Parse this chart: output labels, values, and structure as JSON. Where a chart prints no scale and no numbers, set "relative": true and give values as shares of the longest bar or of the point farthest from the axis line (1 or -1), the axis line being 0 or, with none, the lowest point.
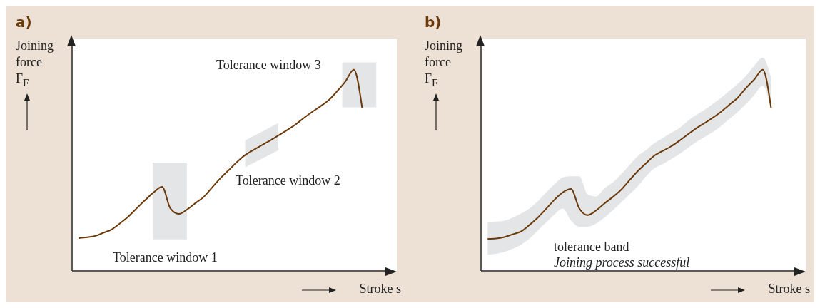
{
  "chart_data": [
    {
      "type": "line",
      "title": "a)",
      "xlabel": "Stroke s",
      "ylabel": "Joining force F$_{F}$",
      "relative": true,
      "categories": [
        null,
        null,
        null,
        null,
        null,
        null,
        null,
        null,
        null,
        null,
        null,
        null,
        null,
        null,
        null,
        null,
        null,
        null,
        null,
        null,
        null,
        null,
        null,
        null,
        null,
        null,
        null,
        null,
        null,
        null,
        null,
        null,
        null,
        null,
        null
      ],
      "series": [
        {
          "color": "#6b3a0a",
          "values": [
            0.163,
            0.167,
            0.174,
            0.19,
            0.207,
            0.238,
            0.272,
            0.313,
            0.353,
            0.391,
            0.418,
            0.31,
            0.283,
            0.305,
            0.337,
            0.368,
            0.415,
            0.461,
            0.501,
            0.542,
            0.577,
            0.602,
            0.626,
            0.649,
            0.674,
            0.7,
            0.727,
            0.76,
            0.79,
            0.818,
            0.849,
            0.893,
            0.942,
            1.0,
            0.81
          ]
        }
      ],
      "annotations": [
        "Tolerance window 1",
        "Tolerance window 2",
        "Tolerance window 3"
      ]
    },
    {
      "type": "line",
      "title": "b)",
      "xlabel": "Stroke s",
      "ylabel": "Joining force F$_{F}$",
      "relative": true,
      "categories": [
        null,
        null,
        null,
        null,
        null,
        null,
        null,
        null,
        null,
        null,
        null,
        null,
        null,
        null,
        null,
        null,
        null,
        null,
        null,
        null,
        null,
        null,
        null,
        null,
        null,
        null,
        null,
        null,
        null,
        null,
        null,
        null,
        null,
        null,
        null
      ],
      "series": [
        {
          "color": "#6b3a0a",
          "values": [
            0.159,
            0.161,
            0.168,
            0.182,
            0.196,
            0.228,
            0.265,
            0.308,
            0.353,
            0.39,
            0.407,
            0.31,
            0.277,
            0.3,
            0.335,
            0.367,
            0.403,
            0.45,
            0.496,
            0.535,
            0.573,
            0.596,
            0.619,
            0.647,
            0.678,
            0.708,
            0.734,
            0.761,
            0.791,
            0.826,
            0.861,
            0.909,
            0.952,
            1.0,
            0.81
          ],
          "lower": [
            0.08,
            0.085,
            0.095,
            0.11,
            0.13,
            0.16,
            0.2,
            0.24,
            0.28,
            0.31,
            0.25,
            0.22,
            0.22,
            0.235,
            0.265,
            0.3,
            0.34,
            0.38,
            0.42,
            0.47,
            0.51,
            0.53,
            0.555,
            0.58,
            0.61,
            0.64,
            0.665,
            0.69,
            0.72,
            0.755,
            0.79,
            0.83,
            0.875,
            0.92,
            0.8
          ],
          "upper": [
            0.24,
            0.245,
            0.25,
            0.265,
            0.285,
            0.31,
            0.345,
            0.39,
            0.43,
            0.465,
            0.47,
            0.47,
            0.38,
            0.37,
            0.41,
            0.44,
            0.48,
            0.525,
            0.57,
            0.6,
            0.635,
            0.66,
            0.685,
            0.71,
            0.745,
            0.775,
            0.8,
            0.83,
            0.86,
            0.895,
            0.93,
            0.97,
            1.02,
            1.06,
            0.96
          ]
        }
      ],
      "annotations": [
        "tolerance band",
        "Joining process successful"
      ]
    }
  ]
}
